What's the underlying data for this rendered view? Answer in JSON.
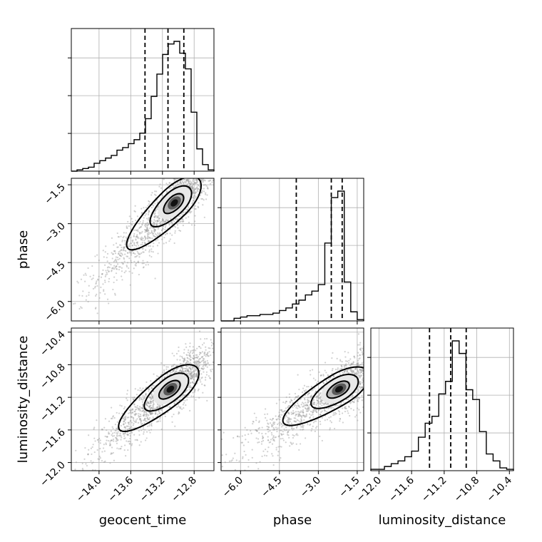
{
  "chart_data": {
    "type": "corner",
    "parameters": [
      "geocent_time",
      "phase",
      "luminosity_distance"
    ],
    "ranges": {
      "geocent_time": [
        -14.35,
        -12.55
      ],
      "phase": [
        -6.75,
        -1.25
      ],
      "luminosity_distance": [
        -12.1,
        -10.35
      ]
    },
    "ticks": {
      "geocent_time": [
        -14.0,
        -13.6,
        -13.2,
        -12.8
      ],
      "phase": [
        -6.0,
        -4.5,
        -3.0,
        -1.5
      ],
      "luminosity_distance": [
        -12.0,
        -11.6,
        -11.2,
        -10.8,
        -10.4
      ]
    },
    "tick_labels": {
      "geocent_time": [
        "−14.0",
        "−13.6",
        "−13.2",
        "−12.8"
      ],
      "phase": [
        "−6.0",
        "−4.5",
        "−3.0",
        "−1.5"
      ],
      "luminosity_distance": [
        "−12.0",
        "−11.6",
        "−11.2",
        "−10.8",
        "−10.4"
      ]
    },
    "quantiles": {
      "geocent_time": [
        -13.42,
        -13.13,
        -12.93
      ],
      "phase": [
        -3.85,
        -2.5,
        -2.08
      ],
      "luminosity_distance": [
        -11.38,
        -11.12,
        -10.93
      ]
    },
    "histograms": {
      "geocent_time": {
        "range": [
          -14.35,
          -12.55
        ],
        "counts": [
          0,
          1,
          2,
          3,
          6,
          8,
          10,
          12,
          16,
          18,
          21,
          24,
          29,
          40,
          57,
          74,
          89,
          97,
          99,
          90,
          78,
          45,
          17,
          5,
          1
        ]
      },
      "phase": {
        "range": [
          -6.75,
          -1.25
        ],
        "counts": [
          0,
          0,
          2,
          3,
          4,
          4,
          5,
          5,
          6,
          8,
          10,
          13,
          16,
          20,
          23,
          28,
          60,
          95,
          100,
          30,
          7,
          1
        ]
      },
      "luminosity_distance": {
        "range": [
          -12.1,
          -10.35
        ],
        "counts": [
          1,
          1,
          3,
          5,
          7,
          10,
          14,
          24,
          34,
          39,
          55,
          64,
          93,
          84,
          58,
          51,
          28,
          12,
          7,
          2,
          1
        ]
      }
    },
    "correlations": {
      "phase_vs_geocent_time": 0.8,
      "luminosity_distance_vs_geocent_time": 0.8,
      "luminosity_distance_vs_phase": 0.75
    },
    "modes": {
      "phase_vs_geocent_time": {
        "x": -13.05,
        "y": -2.2
      },
      "luminosity_distance_vs_geocent_time": {
        "x": -13.1,
        "y": -11.1
      },
      "luminosity_distance_vs_phase": {
        "x": -2.2,
        "y": -11.1
      }
    },
    "contours_1d_sigma": [
      0.5,
      1.0,
      1.5
    ],
    "grid": true,
    "colors": {
      "line": "#000000",
      "grid": "#b0b0b0",
      "points": "#9a9a9a",
      "hist2d_high": "#000000",
      "hist2d_low": "#ffffff"
    }
  }
}
